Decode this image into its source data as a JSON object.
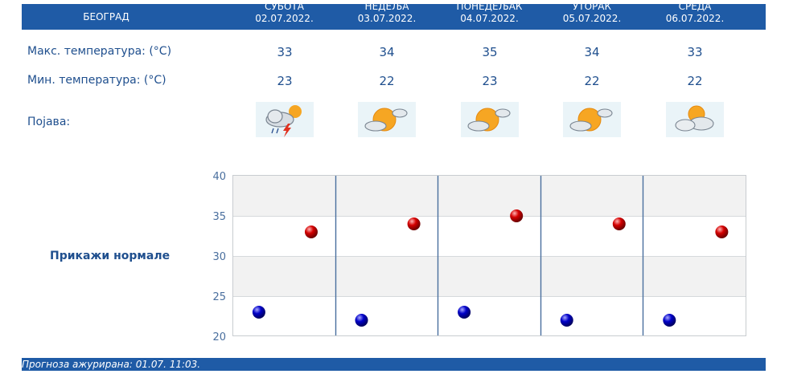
{
  "header": {
    "city": "БЕОГРАД",
    "days": [
      {
        "name": "СУБОТА",
        "date": "02.07.2022."
      },
      {
        "name": "НЕДЕЉА",
        "date": "03.07.2022."
      },
      {
        "name": "ПОНЕДЕЉАК",
        "date": "04.07.2022."
      },
      {
        "name": "УТОРАК",
        "date": "05.07.2022."
      },
      {
        "name": "СРЕДА",
        "date": "06.07.2022."
      }
    ]
  },
  "rows": {
    "max_label": "Макс. температура: (°C)",
    "min_label": "Мин. температура: (°C)",
    "phenomenon_label": "Појава:",
    "max_values": [
      "33",
      "34",
      "35",
      "34",
      "33"
    ],
    "min_values": [
      "23",
      "22",
      "23",
      "22",
      "22"
    ],
    "phenomenon_icons": [
      "thunderstorm-partly-sunny-icon",
      "partly-sunny-icon",
      "partly-sunny-icon",
      "partly-sunny-icon",
      "sun-behind-clouds-icon"
    ]
  },
  "normals_label": "Прикажи нормале",
  "footer": {
    "text": "Прогноза ажурирана:  01.07.  11:03."
  },
  "colors": {
    "header_bg": "#1f5ba6",
    "text": "#1f4f8e",
    "max_dot": "#cc0000",
    "min_dot": "#0000bb"
  },
  "chart_data": {
    "type": "scatter",
    "ylim": [
      20,
      40
    ],
    "yticks": [
      "40",
      "35",
      "30",
      "25",
      "20"
    ],
    "grid": true,
    "series": [
      {
        "values": [
          33,
          34,
          35,
          34,
          33
        ]
      },
      {
        "values": [
          23,
          22,
          23,
          22,
          22
        ]
      }
    ]
  }
}
